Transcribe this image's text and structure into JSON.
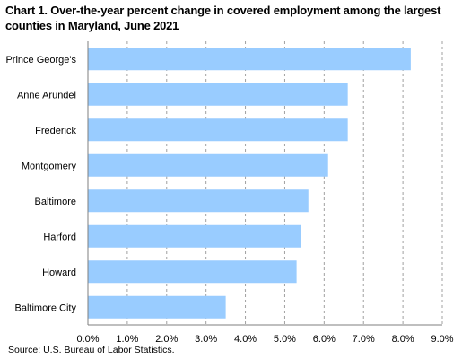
{
  "chart_data": {
    "type": "bar",
    "orientation": "horizontal",
    "title": "Chart 1. Over-the-year percent change in covered employment among the largest counties in Maryland, June 2021",
    "categories": [
      "Prince George's",
      "Anne Arundel",
      "Frederick",
      "Montgomery",
      "Baltimore",
      "Harford",
      "Howard",
      "Baltimore City"
    ],
    "values": [
      8.2,
      6.6,
      6.6,
      6.1,
      5.6,
      5.4,
      5.3,
      3.5
    ],
    "xlim": [
      0,
      9
    ],
    "x_ticks": [
      "0.0%",
      "1.0%",
      "2.0%",
      "3.0%",
      "4.0%",
      "5.0%",
      "6.0%",
      "7.0%",
      "8.0%",
      "9.0%"
    ],
    "grid": "vertical dashed",
    "bar_color": "#99CCFF",
    "source": "Source: U.S. Bureau of Labor Statistics."
  }
}
